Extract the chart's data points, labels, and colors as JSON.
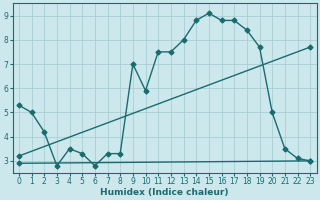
{
  "xlabel": "Humidex (Indice chaleur)",
  "ylabel": "",
  "bg_color": "#cce8ed",
  "grid_color": "#aacdd4",
  "line_color": "#1a6b6e",
  "xlim": [
    -0.5,
    23.5
  ],
  "ylim": [
    2.5,
    9.5
  ],
  "xticks": [
    0,
    1,
    2,
    3,
    4,
    5,
    6,
    7,
    8,
    9,
    10,
    11,
    12,
    13,
    14,
    15,
    16,
    17,
    18,
    19,
    20,
    21,
    22,
    23
  ],
  "yticks": [
    3,
    4,
    5,
    6,
    7,
    8,
    9
  ],
  "line1_x": [
    0,
    1,
    2,
    3,
    4,
    5,
    6,
    7,
    8,
    9,
    10,
    11,
    12,
    13,
    14,
    15,
    16,
    17,
    18,
    19,
    20,
    21,
    22,
    23
  ],
  "line1_y": [
    5.3,
    5.0,
    4.2,
    2.8,
    3.5,
    3.3,
    2.8,
    3.3,
    3.3,
    7.0,
    5.9,
    7.5,
    7.5,
    8.0,
    8.8,
    9.1,
    8.8,
    8.8,
    8.4,
    7.7,
    5.0,
    3.5,
    3.1,
    3.0
  ],
  "line2_x": [
    0,
    23
  ],
  "line2_y": [
    3.2,
    7.7
  ],
  "line3_x": [
    0,
    23
  ],
  "line3_y": [
    2.9,
    3.0
  ],
  "marker_size": 2.5,
  "line_width": 1.0
}
